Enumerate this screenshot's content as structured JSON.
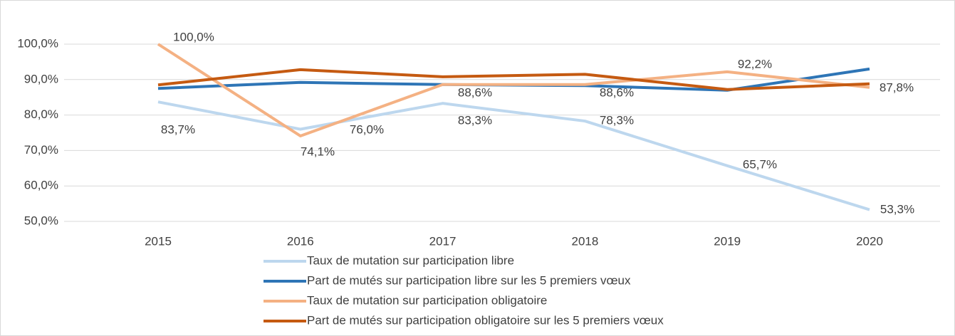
{
  "chart_data": {
    "type": "line",
    "x": [
      2015,
      2016,
      2017,
      2018,
      2019,
      2020
    ],
    "series": [
      {
        "name": "Taux de mutation sur participation libre",
        "color": "#bdd7ee",
        "values": [
          83.7,
          76.0,
          83.3,
          78.3,
          65.7,
          53.3
        ],
        "value_labels": [
          "83,7%",
          "76,0%",
          "83,3%",
          "78,3%",
          "65,7%",
          "53,3%"
        ]
      },
      {
        "name": "Part de mutés sur participation libre sur les 5 premiers vœux",
        "color": "#2e75b6",
        "values": [
          87.5,
          89.2,
          88.6,
          88.3,
          87.0,
          93.0
        ]
      },
      {
        "name": "Taux de mutation sur participation obligatoire",
        "color": "#f4b183",
        "values": [
          100.0,
          74.1,
          88.6,
          88.6,
          92.2,
          87.8
        ],
        "value_labels": [
          "100,0%",
          "74,1%",
          "88,6%",
          "88,6%",
          "92,2%",
          "87,8%"
        ]
      },
      {
        "name": "Part de mutés sur participation obligatoire sur les 5 premiers vœux",
        "color": "#c55a11",
        "values": [
          88.5,
          92.8,
          90.8,
          91.5,
          87.2,
          88.8
        ]
      }
    ],
    "ylim": [
      50,
      100
    ],
    "yticks": [
      {
        "value": 50,
        "label": "50,0%"
      },
      {
        "value": 60,
        "label": "60,0%"
      },
      {
        "value": 70,
        "label": "70,0%"
      },
      {
        "value": 80,
        "label": "80,0%"
      },
      {
        "value": 90,
        "label": "90,0%"
      },
      {
        "value": 100,
        "label": "100,0%"
      }
    ],
    "grid": true,
    "legend": "bottom"
  }
}
